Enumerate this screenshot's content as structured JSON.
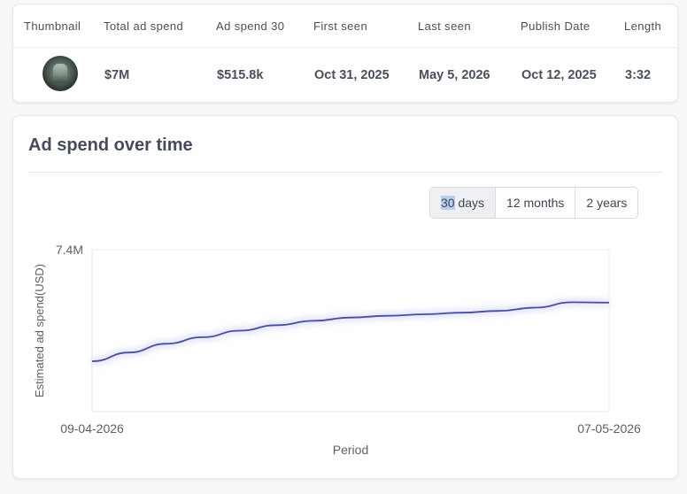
{
  "table": {
    "headers": [
      "Thumbnail",
      "Total ad spend",
      "Ad spend 30",
      "First seen",
      "Last seen",
      "Publish Date",
      "Length"
    ],
    "row": {
      "total_ad_spend": "$7M",
      "ad_spend_30": "$515.8k",
      "first_seen": "Oct 31, 2025",
      "last_seen": "May 5, 2026",
      "publish_date": "Oct 12, 2025",
      "length": "3:32"
    }
  },
  "chart_section": {
    "title": "Ad spend over time",
    "range_buttons": [
      {
        "label_highlight": "30",
        "label_rest": " days",
        "active": true
      },
      {
        "label": "12 months",
        "active": false
      },
      {
        "label": "2 years",
        "active": false
      }
    ]
  },
  "chart_data": {
    "type": "line",
    "ylabel": "Estimated ad spend(USD)",
    "xlabel": "Period",
    "ylim": [
      0,
      7400000
    ],
    "y_tick_labels": [
      "7.4M"
    ],
    "x_tick_labels": [
      "09-04-2026",
      "07-05-2026"
    ],
    "grid": "vertical-start-end",
    "series_color": "#4a4e9e",
    "x": [
      "09-04-2026",
      "11-04-2026",
      "13-04-2026",
      "15-04-2026",
      "17-04-2026",
      "19-04-2026",
      "21-04-2026",
      "23-04-2026",
      "25-04-2026",
      "27-04-2026",
      "29-04-2026",
      "01-05-2026",
      "03-05-2026",
      "05-05-2026",
      "07-05-2026"
    ],
    "values": [
      2300000,
      2700000,
      3100000,
      3400000,
      3700000,
      3950000,
      4150000,
      4300000,
      4380000,
      4450000,
      4520000,
      4600000,
      4750000,
      5000000,
      4980000
    ]
  }
}
